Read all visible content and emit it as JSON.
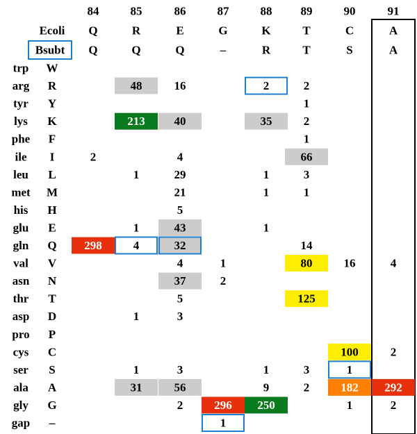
{
  "header": {
    "positions": [
      "84",
      "85",
      "86",
      "87",
      "88",
      "89",
      "90",
      "91"
    ],
    "ecoli_label": "Ecoli",
    "ecoli": [
      "Q",
      "R",
      "E",
      "G",
      "K",
      "T",
      "C",
      "A"
    ],
    "bsubt_label": "Bsubt",
    "bsubt": [
      "Q",
      "Q",
      "Q",
      "–",
      "R",
      "T",
      "S",
      "A"
    ]
  },
  "rows": [
    {
      "name": "trp",
      "letter": "W",
      "cells": [
        null,
        null,
        null,
        null,
        null,
        null,
        null,
        null
      ]
    },
    {
      "name": "arg",
      "letter": "R",
      "cells": [
        null,
        {
          "value": 48,
          "fill": "#cccccc"
        },
        {
          "value": 16
        },
        null,
        {
          "value": 2,
          "outline": "#1e7fd0"
        },
        {
          "value": 2
        },
        null,
        null
      ]
    },
    {
      "name": "tyr",
      "letter": "Y",
      "cells": [
        null,
        null,
        null,
        null,
        null,
        {
          "value": 1
        },
        null,
        null
      ]
    },
    {
      "name": "lys",
      "letter": "K",
      "cells": [
        null,
        {
          "value": 213,
          "fill": "#0a7a1e"
        },
        {
          "value": 40,
          "fill": "#cccccc"
        },
        null,
        {
          "value": 35,
          "fill": "#cccccc"
        },
        {
          "value": 2
        },
        null,
        null
      ]
    },
    {
      "name": "phe",
      "letter": "F",
      "cells": [
        null,
        null,
        null,
        null,
        null,
        {
          "value": 1
        },
        null,
        null
      ]
    },
    {
      "name": "ile",
      "letter": "I",
      "cells": [
        {
          "value": 2
        },
        null,
        {
          "value": 4
        },
        null,
        null,
        {
          "value": 66,
          "fill": "#cccccc"
        },
        null,
        null
      ]
    },
    {
      "name": "leu",
      "letter": "L",
      "cells": [
        null,
        {
          "value": 1
        },
        {
          "value": 29
        },
        null,
        {
          "value": 1
        },
        {
          "value": 3
        },
        null,
        null
      ]
    },
    {
      "name": "met",
      "letter": "M",
      "cells": [
        null,
        null,
        {
          "value": 21
        },
        null,
        {
          "value": 1
        },
        {
          "value": 1
        },
        null,
        null
      ]
    },
    {
      "name": "his",
      "letter": "H",
      "cells": [
        null,
        null,
        {
          "value": 5
        },
        null,
        null,
        null,
        null,
        null
      ]
    },
    {
      "name": "glu",
      "letter": "E",
      "cells": [
        null,
        {
          "value": 1
        },
        {
          "value": 43,
          "fill": "#cccccc"
        },
        null,
        {
          "value": 1
        },
        null,
        null,
        null
      ]
    },
    {
      "name": "gln",
      "letter": "Q",
      "cells": [
        {
          "value": 298,
          "fill": "#e8300c"
        },
        {
          "value": 4,
          "outline": "#1e7fd0"
        },
        {
          "value": 32,
          "fill": "#cccccc",
          "outline": "#1e7fd0"
        },
        null,
        null,
        {
          "value": 14
        },
        null,
        null
      ]
    },
    {
      "name": "val",
      "letter": "V",
      "cells": [
        null,
        null,
        {
          "value": 4
        },
        {
          "value": 1
        },
        null,
        {
          "value": 80,
          "fill": "#ffee00"
        },
        {
          "value": 16
        },
        {
          "value": 4
        }
      ]
    },
    {
      "name": "asn",
      "letter": "N",
      "cells": [
        null,
        null,
        {
          "value": 37,
          "fill": "#cccccc"
        },
        {
          "value": 2
        },
        null,
        null,
        null,
        null
      ]
    },
    {
      "name": "thr",
      "letter": "T",
      "cells": [
        null,
        null,
        {
          "value": 5
        },
        null,
        null,
        {
          "value": 125,
          "fill": "#ffee00"
        },
        null,
        null
      ]
    },
    {
      "name": "asp",
      "letter": "D",
      "cells": [
        null,
        {
          "value": 1
        },
        {
          "value": 3
        },
        null,
        null,
        null,
        null,
        null
      ]
    },
    {
      "name": "pro",
      "letter": "P",
      "cells": [
        null,
        null,
        null,
        null,
        null,
        null,
        null,
        null
      ]
    },
    {
      "name": "cys",
      "letter": "C",
      "cells": [
        null,
        null,
        null,
        null,
        null,
        null,
        {
          "value": 100,
          "fill": "#ffee00"
        },
        {
          "value": 2
        }
      ]
    },
    {
      "name": "ser",
      "letter": "S",
      "cells": [
        null,
        {
          "value": 1
        },
        {
          "value": 3
        },
        null,
        {
          "value": 1
        },
        {
          "value": 3
        },
        {
          "value": 1,
          "outline": "#1e7fd0"
        },
        null
      ]
    },
    {
      "name": "ala",
      "letter": "A",
      "cells": [
        null,
        {
          "value": 31,
          "fill": "#cccccc"
        },
        {
          "value": 56,
          "fill": "#cccccc"
        },
        null,
        {
          "value": 9
        },
        {
          "value": 2
        },
        {
          "value": 182,
          "fill": "#ff8000"
        },
        {
          "value": 292,
          "fill": "#e8300c"
        }
      ]
    },
    {
      "name": "gly",
      "letter": "G",
      "cells": [
        null,
        null,
        {
          "value": 2
        },
        {
          "value": 296,
          "fill": "#e8300c"
        },
        {
          "value": 250,
          "fill": "#0a7a1e"
        },
        null,
        {
          "value": 1
        },
        {
          "value": 2
        }
      ]
    },
    {
      "name": "gap",
      "letter": "–",
      "cells": [
        null,
        null,
        null,
        {
          "value": 1,
          "outline": "#1e7fd0"
        },
        null,
        null,
        null,
        null
      ]
    }
  ]
}
